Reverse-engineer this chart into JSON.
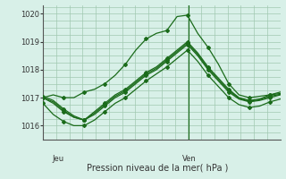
{
  "background_color": "#d8f0e8",
  "grid_color": "#a0c8b0",
  "line_color": "#1a6b1a",
  "marker_color": "#1a6b1a",
  "title": "Pression niveau de la mer( hPa )",
  "xlabel_jeu": "Jeu",
  "xlabel_ven": "Ven",
  "ylim": [
    1015.5,
    1020.3
  ],
  "yticks": [
    1016,
    1017,
    1018,
    1019,
    1020
  ],
  "vline_x": 0.615,
  "series": [
    [
      1017.0,
      1017.1,
      1017.0,
      1017.0,
      1017.2,
      1017.3,
      1017.5,
      1017.8,
      1018.2,
      1018.7,
      1019.1,
      1019.3,
      1019.4,
      1019.9,
      1019.95,
      1019.3,
      1018.8,
      1018.2,
      1017.5,
      1017.1,
      1017.0,
      1017.05,
      1017.1,
      1017.2
    ],
    [
      1017.0,
      1016.8,
      1016.5,
      1016.3,
      1016.2,
      1016.4,
      1016.7,
      1017.0,
      1017.2,
      1017.5,
      1017.8,
      1018.0,
      1018.3,
      1018.6,
      1018.9,
      1018.5,
      1018.0,
      1017.6,
      1017.2,
      1016.95,
      1016.85,
      1016.9,
      1017.0,
      1017.1
    ],
    [
      1017.05,
      1016.9,
      1016.6,
      1016.35,
      1016.2,
      1016.5,
      1016.8,
      1017.1,
      1017.3,
      1017.6,
      1017.9,
      1018.1,
      1018.4,
      1018.7,
      1019.0,
      1018.6,
      1018.1,
      1017.7,
      1017.3,
      1017.0,
      1016.9,
      1016.95,
      1017.1,
      1017.15
    ],
    [
      1017.0,
      1016.85,
      1016.55,
      1016.3,
      1016.2,
      1016.45,
      1016.75,
      1017.05,
      1017.25,
      1017.55,
      1017.85,
      1018.05,
      1018.35,
      1018.65,
      1018.95,
      1018.55,
      1018.05,
      1017.65,
      1017.25,
      1016.98,
      1016.87,
      1016.93,
      1017.05,
      1017.12
    ],
    [
      1016.8,
      1016.4,
      1016.15,
      1016.0,
      1016.0,
      1016.2,
      1016.5,
      1016.8,
      1017.0,
      1017.3,
      1017.6,
      1017.85,
      1018.1,
      1018.4,
      1018.7,
      1018.3,
      1017.8,
      1017.4,
      1017.0,
      1016.75,
      1016.65,
      1016.7,
      1016.85,
      1016.95
    ]
  ],
  "markers_indices": [
    0,
    2,
    4,
    6,
    8,
    10,
    12,
    14,
    16,
    18,
    20,
    22
  ],
  "n_points": 24
}
